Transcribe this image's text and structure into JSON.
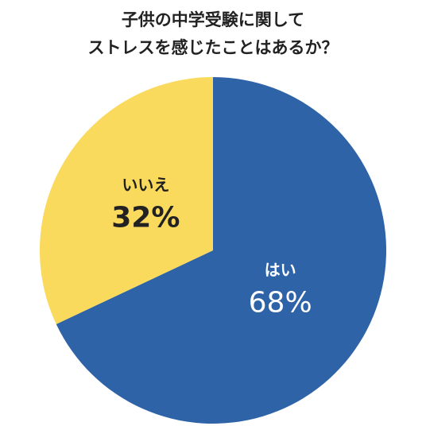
{
  "title_lines": [
    "子供の中学受験に関して",
    "ストレスを感じたことはあるか？"
  ],
  "chart_data": {
    "type": "pie",
    "title": "子供の中学受験に関して ストレスを感じたことはあるか？",
    "categories": [
      "はい",
      "いいえ"
    ],
    "values": [
      68,
      32
    ],
    "value_labels": [
      "68%",
      "32%"
    ],
    "colors": [
      "#2e63a8",
      "#fada5c"
    ],
    "label_colors": [
      "#ffffff",
      "#222222"
    ],
    "start_angle": "12 o'clock, clockwise",
    "legend": "none (labels on slices)"
  }
}
